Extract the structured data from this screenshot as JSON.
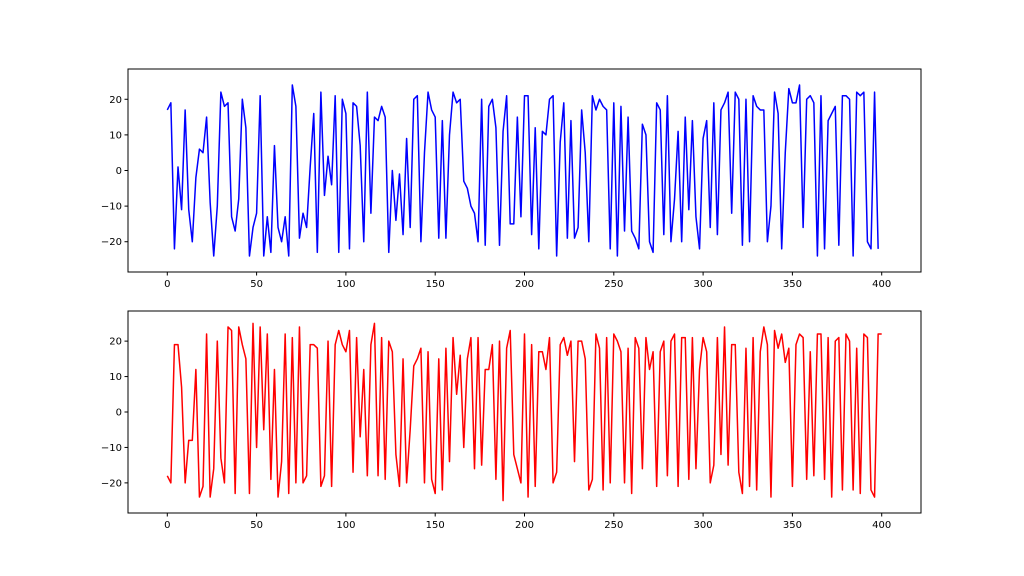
{
  "chart_data": [
    {
      "type": "line",
      "xlim": [
        -22,
        422
      ],
      "ylim": [
        -28.5,
        28.5
      ],
      "xticks": [
        0,
        50,
        100,
        150,
        200,
        250,
        300,
        350,
        400
      ],
      "yticks": [
        -20,
        -10,
        0,
        10,
        20
      ],
      "xtick_labels": [
        "0",
        "50",
        "100",
        "150",
        "200",
        "250",
        "300",
        "350",
        "400"
      ],
      "ytick_labels": [
        "−20",
        "−10",
        "0",
        "10",
        "20"
      ],
      "grid": false,
      "series": [
        {
          "color": "#0000ff",
          "x_start": 0,
          "x_step": 2,
          "values": [
            17,
            19,
            -22,
            1,
            -11,
            17,
            -11,
            -20,
            -2,
            6,
            5,
            15,
            -9,
            -24,
            -10,
            22,
            18,
            19,
            -13,
            -17,
            -8,
            20,
            12,
            -24,
            -16,
            -12,
            21,
            -24,
            -13,
            -23,
            7,
            -16,
            -20,
            -13,
            -24,
            24,
            18,
            -19,
            -12,
            -16,
            1,
            16,
            -23,
            22,
            -7,
            4,
            -4,
            21,
            -23,
            20,
            16,
            -22,
            19,
            18,
            7,
            -20,
            22,
            -12,
            15,
            14,
            18,
            15,
            -23,
            0,
            -14,
            -1,
            -18,
            9,
            -16,
            20,
            21,
            -20,
            5,
            22,
            17,
            15,
            -19,
            14,
            -19,
            10,
            22,
            19,
            20,
            -3,
            -5,
            -10,
            -12,
            -20,
            20,
            -21,
            18,
            20,
            12,
            -21,
            11,
            21,
            -15,
            -15,
            15,
            -13,
            21,
            21,
            -18,
            12,
            -22,
            11,
            10,
            20,
            21,
            -24,
            8,
            19,
            -19,
            14,
            -19,
            -16,
            17,
            5,
            -20,
            21,
            17,
            20,
            18,
            17,
            -22,
            19,
            -24,
            18,
            -17,
            15,
            -17,
            -19,
            -22,
            13,
            10,
            -20,
            -23,
            19,
            17,
            -18,
            21,
            -20,
            -8,
            11,
            -20,
            15,
            -11,
            14,
            -13,
            -22,
            9,
            14,
            -16,
            19,
            -18,
            17,
            19,
            22,
            -12,
            22,
            20,
            -21,
            20,
            -20,
            21,
            18,
            17,
            17,
            -20,
            -10,
            22,
            16,
            -22,
            5,
            23,
            19,
            19,
            24,
            -16,
            20,
            21,
            19,
            -24,
            21,
            -22,
            14,
            16,
            18,
            -21,
            21,
            21,
            20,
            -24,
            22,
            21,
            22,
            -20,
            -22,
            22,
            -22
          ]
        }
      ]
    },
    {
      "type": "line",
      "xlim": [
        -22,
        422
      ],
      "ylim": [
        -28.5,
        28.5
      ],
      "xticks": [
        0,
        50,
        100,
        150,
        200,
        250,
        300,
        350,
        400
      ],
      "yticks": [
        -20,
        -10,
        0,
        10,
        20
      ],
      "xtick_labels": [
        "0",
        "50",
        "100",
        "150",
        "200",
        "250",
        "300",
        "350",
        "400"
      ],
      "ytick_labels": [
        "−20",
        "−10",
        "0",
        "10",
        "20"
      ],
      "grid": false,
      "series": [
        {
          "color": "#ff0000",
          "x_start": 0,
          "x_step": 2,
          "values": [
            -18,
            -20,
            19,
            19,
            7,
            -20,
            -8,
            -8,
            12,
            -24,
            -21,
            22,
            -24,
            -16,
            20,
            -13,
            -20,
            24,
            23,
            -23,
            24,
            19,
            15,
            -23,
            25,
            -10,
            24,
            -5,
            22,
            -19,
            12,
            -24,
            -14,
            22,
            -23,
            21,
            -20,
            24,
            -20,
            -18,
            19,
            19,
            18,
            -21,
            -18,
            20,
            -21,
            19,
            23,
            19,
            17,
            23,
            -17,
            21,
            -7,
            12,
            -18,
            19,
            25,
            -18,
            21,
            -19,
            20,
            17,
            -12,
            -21,
            15,
            -20,
            -5,
            13,
            15,
            18,
            -20,
            17,
            -19,
            -23,
            15,
            -22,
            18,
            -14,
            21,
            5,
            16,
            -10,
            15,
            21,
            -16,
            21,
            -15,
            12,
            12,
            19,
            -19,
            20,
            -25,
            18,
            23,
            -12,
            -16,
            -20,
            22,
            -24,
            19,
            -21,
            17,
            17,
            12,
            21,
            -20,
            -17,
            19,
            21,
            16,
            20,
            -14,
            20,
            20,
            15,
            -22,
            -19,
            22,
            18,
            -22,
            21,
            -20,
            22,
            20,
            17,
            -20,
            18,
            -23,
            21,
            18,
            -16,
            21,
            12,
            17,
            -21,
            17,
            20,
            -18,
            20,
            22,
            -21,
            21,
            21,
            -19,
            21,
            -16,
            12,
            21,
            17,
            -20,
            -15,
            21,
            -12,
            24,
            -15,
            19,
            19,
            -17,
            -23,
            18,
            -21,
            21,
            -22,
            17,
            24,
            19,
            -24,
            23,
            18,
            22,
            14,
            18,
            -21,
            19,
            22,
            21,
            -19,
            17,
            -18,
            22,
            22,
            -19,
            21,
            -24,
            20,
            21,
            -22,
            22,
            20,
            -22,
            18,
            -23,
            22,
            21,
            -22,
            -24,
            22,
            22
          ]
        }
      ]
    }
  ]
}
